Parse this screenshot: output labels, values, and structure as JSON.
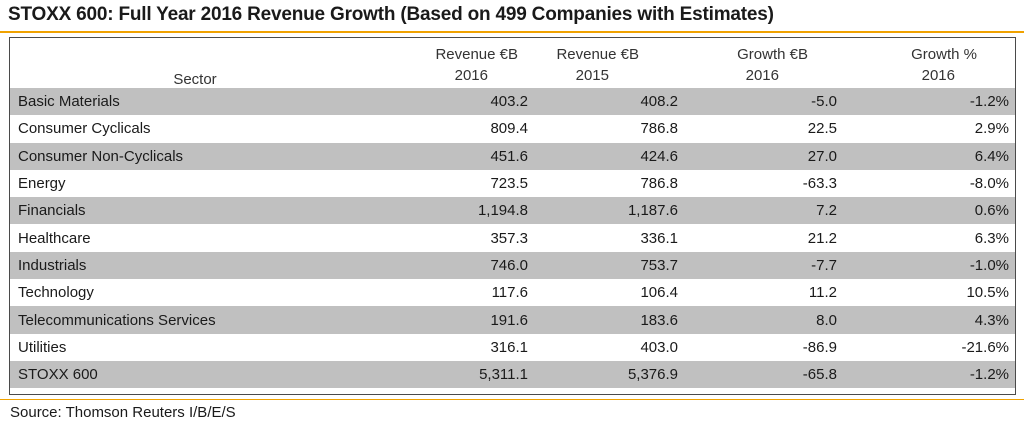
{
  "title": "STOXX 600: Full Year 2016 Revenue Growth (Based on 499 Companies with Estimates)",
  "header": {
    "sector": "Sector",
    "col1_line1": "Revenue €B",
    "col1_line2": "2016",
    "col2_line1": "Revenue €B",
    "col2_line2": "2015",
    "col3_line1": "Growth €B",
    "col3_line2": "2016",
    "col4_line1": "Growth %",
    "col4_line2": "2016"
  },
  "rows": [
    {
      "sector": "Basic Materials",
      "rev2016": "403.2",
      "rev2015": "408.2",
      "growth_eur": "-5.0",
      "growth_pct": "-1.2%"
    },
    {
      "sector": "Consumer Cyclicals",
      "rev2016": "809.4",
      "rev2015": "786.8",
      "growth_eur": "22.5",
      "growth_pct": "2.9%"
    },
    {
      "sector": "Consumer Non-Cyclicals",
      "rev2016": "451.6",
      "rev2015": "424.6",
      "growth_eur": "27.0",
      "growth_pct": "6.4%"
    },
    {
      "sector": "Energy",
      "rev2016": "723.5",
      "rev2015": "786.8",
      "growth_eur": "-63.3",
      "growth_pct": "-8.0%"
    },
    {
      "sector": "Financials",
      "rev2016": "1,194.8",
      "rev2015": "1,187.6",
      "growth_eur": "7.2",
      "growth_pct": "0.6%"
    },
    {
      "sector": "Healthcare",
      "rev2016": "357.3",
      "rev2015": "336.1",
      "growth_eur": "21.2",
      "growth_pct": "6.3%"
    },
    {
      "sector": "Industrials",
      "rev2016": "746.0",
      "rev2015": "753.7",
      "growth_eur": "-7.7",
      "growth_pct": "-1.0%"
    },
    {
      "sector": "Technology",
      "rev2016": "117.6",
      "rev2015": "106.4",
      "growth_eur": "11.2",
      "growth_pct": "10.5%"
    },
    {
      "sector": "Telecommunications Services",
      "rev2016": "191.6",
      "rev2015": "183.6",
      "growth_eur": "8.0",
      "growth_pct": "4.3%"
    },
    {
      "sector": "Utilities",
      "rev2016": "316.1",
      "rev2015": "403.0",
      "growth_eur": "-86.9",
      "growth_pct": "-21.6%"
    },
    {
      "sector": "STOXX 600",
      "rev2016": "5,311.1",
      "rev2015": "5,376.9",
      "growth_eur": "-65.8",
      "growth_pct": "-1.2%"
    }
  ],
  "source": "Source: Thomson Reuters I/B/E/S",
  "colors": {
    "accent_rule": "#f0a200",
    "row_shade": "#c0c0c0",
    "border": "#4a4a4a"
  }
}
